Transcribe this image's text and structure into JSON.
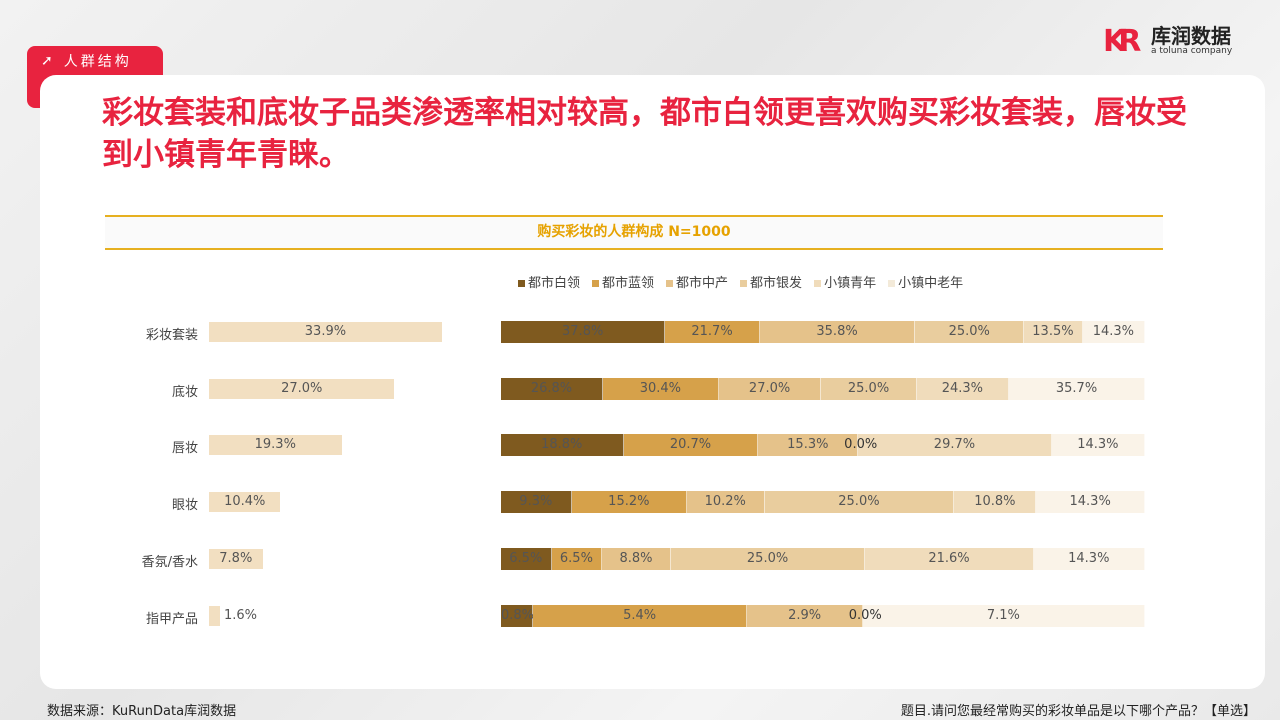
{
  "tag": "人群结构",
  "headline": "彩妆套装和底妆子品类渗透率相对较高，都市白领更喜欢购买彩妆套装，唇妆受到小镇青年青睐。",
  "logo": {
    "name": "库润数据",
    "sub": "a toluna company"
  },
  "footer": {
    "source": "数据来源：KuRunData库润数据",
    "question": "题目.请问您最经常购买的彩妆单品是以下哪个产品？【单选】"
  },
  "chart_data": [
    {
      "type": "bar",
      "orientation": "horizontal",
      "title": "购买彩妆的人群构成 N=1000",
      "categories": [
        "彩妆套装",
        "底妆",
        "唇妆",
        "眼妆",
        "香氛/香水",
        "指甲产品"
      ],
      "values": [
        33.9,
        27.0,
        19.3,
        10.4,
        7.8,
        1.6
      ],
      "unit": "%",
      "color": "#f2dfc1"
    },
    {
      "type": "bar",
      "orientation": "horizontal",
      "stacked": true,
      "legend_position": "top",
      "categories": [
        "彩妆套装",
        "底妆",
        "唇妆",
        "眼妆",
        "香氛/香水",
        "指甲产品"
      ],
      "series": [
        {
          "name": "都市白领",
          "color": "#7f5a1f",
          "values": [
            37.8,
            26.8,
            18.8,
            9.3,
            6.5,
            0.8
          ]
        },
        {
          "name": "都市蓝领",
          "color": "#d6a14a",
          "values": [
            21.7,
            30.4,
            20.7,
            15.2,
            6.5,
            5.4
          ]
        },
        {
          "name": "都市中产",
          "color": "#e5c28a",
          "values": [
            35.8,
            27.0,
            15.3,
            10.2,
            8.8,
            2.9
          ]
        },
        {
          "name": "都市银发",
          "color": "#e9cd9e",
          "values": [
            25.0,
            25.0,
            0.0,
            25.0,
            25.0,
            0.0
          ]
        },
        {
          "name": "小镇青年",
          "color": "#f0dcbb",
          "values": [
            13.5,
            24.3,
            29.7,
            10.8,
            21.6,
            null
          ]
        },
        {
          "name": "小镇中老年",
          "color": "#faf3e8",
          "values": [
            14.3,
            35.7,
            14.3,
            14.3,
            14.3,
            7.1
          ]
        }
      ]
    }
  ]
}
